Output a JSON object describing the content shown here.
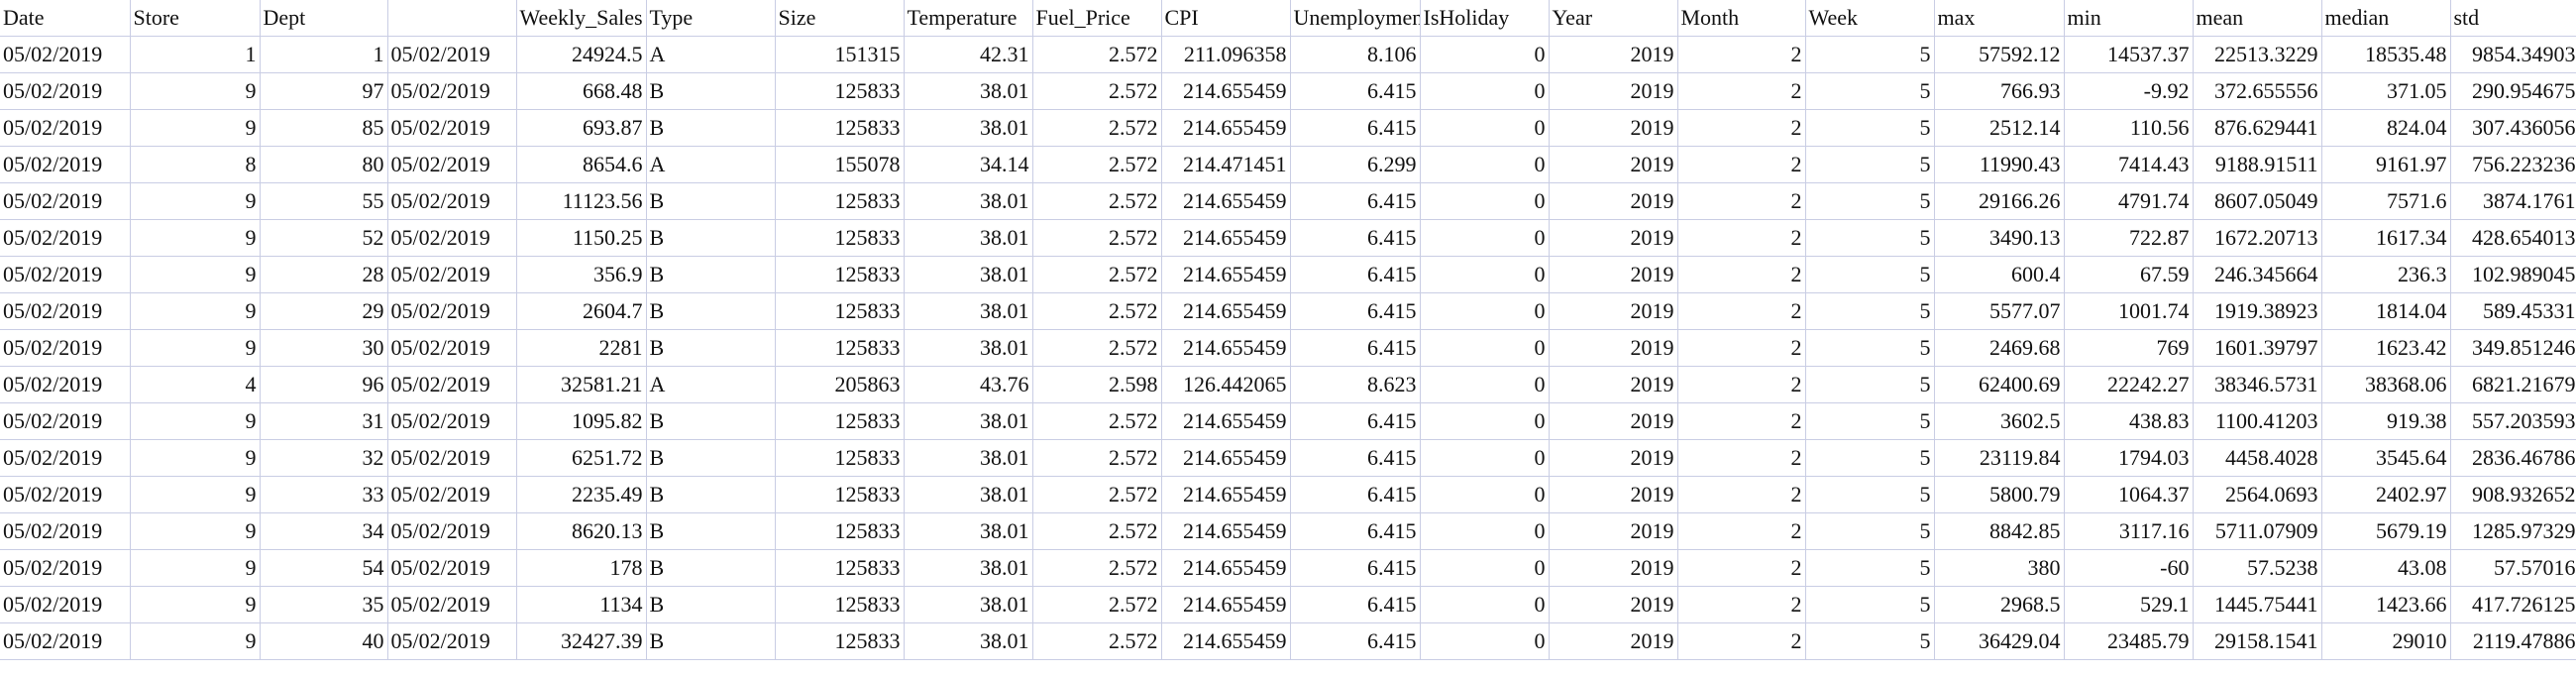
{
  "sheet": {
    "headers": [
      "Date",
      "Store",
      "Dept",
      "",
      "Weekly_Sales",
      "Type",
      "Size",
      "Temperature",
      "Fuel_Price",
      "CPI",
      "Unemployment",
      "IsHoliday",
      "Year",
      "Month",
      "Week",
      "max",
      "min",
      "mean",
      "median",
      "std"
    ],
    "rows": [
      [
        "05/02/2019",
        "1",
        "1",
        "05/02/2019",
        "24924.5",
        "A",
        "151315",
        "42.31",
        "2.572",
        "211.096358",
        "8.106",
        "0",
        "2019",
        "2",
        "5",
        "57592.12",
        "14537.37",
        "22513.3229",
        "18535.48",
        "9854.34903"
      ],
      [
        "05/02/2019",
        "9",
        "97",
        "05/02/2019",
        "668.48",
        "B",
        "125833",
        "38.01",
        "2.572",
        "214.655459",
        "6.415",
        "0",
        "2019",
        "2",
        "5",
        "766.93",
        "-9.92",
        "372.655556",
        "371.05",
        "290.954675"
      ],
      [
        "05/02/2019",
        "9",
        "85",
        "05/02/2019",
        "693.87",
        "B",
        "125833",
        "38.01",
        "2.572",
        "214.655459",
        "6.415",
        "0",
        "2019",
        "2",
        "5",
        "2512.14",
        "110.56",
        "876.629441",
        "824.04",
        "307.436056"
      ],
      [
        "05/02/2019",
        "8",
        "80",
        "05/02/2019",
        "8654.6",
        "A",
        "155078",
        "34.14",
        "2.572",
        "214.471451",
        "6.299",
        "0",
        "2019",
        "2",
        "5",
        "11990.43",
        "7414.43",
        "9188.91511",
        "9161.97",
        "756.223236"
      ],
      [
        "05/02/2019",
        "9",
        "55",
        "05/02/2019",
        "11123.56",
        "B",
        "125833",
        "38.01",
        "2.572",
        "214.655459",
        "6.415",
        "0",
        "2019",
        "2",
        "5",
        "29166.26",
        "4791.74",
        "8607.05049",
        "7571.6",
        "3874.1761"
      ],
      [
        "05/02/2019",
        "9",
        "52",
        "05/02/2019",
        "1150.25",
        "B",
        "125833",
        "38.01",
        "2.572",
        "214.655459",
        "6.415",
        "0",
        "2019",
        "2",
        "5",
        "3490.13",
        "722.87",
        "1672.20713",
        "1617.34",
        "428.654013"
      ],
      [
        "05/02/2019",
        "9",
        "28",
        "05/02/2019",
        "356.9",
        "B",
        "125833",
        "38.01",
        "2.572",
        "214.655459",
        "6.415",
        "0",
        "2019",
        "2",
        "5",
        "600.4",
        "67.59",
        "246.345664",
        "236.3",
        "102.989045"
      ],
      [
        "05/02/2019",
        "9",
        "29",
        "05/02/2019",
        "2604.7",
        "B",
        "125833",
        "38.01",
        "2.572",
        "214.655459",
        "6.415",
        "0",
        "2019",
        "2",
        "5",
        "5577.07",
        "1001.74",
        "1919.38923",
        "1814.04",
        "589.45331"
      ],
      [
        "05/02/2019",
        "9",
        "30",
        "05/02/2019",
        "2281",
        "B",
        "125833",
        "38.01",
        "2.572",
        "214.655459",
        "6.415",
        "0",
        "2019",
        "2",
        "5",
        "2469.68",
        "769",
        "1601.39797",
        "1623.42",
        "349.851246"
      ],
      [
        "05/02/2019",
        "4",
        "96",
        "05/02/2019",
        "32581.21",
        "A",
        "205863",
        "43.76",
        "2.598",
        "126.442065",
        "8.623",
        "0",
        "2019",
        "2",
        "5",
        "62400.69",
        "22242.27",
        "38346.5731",
        "38368.06",
        "6821.21679"
      ],
      [
        "05/02/2019",
        "9",
        "31",
        "05/02/2019",
        "1095.82",
        "B",
        "125833",
        "38.01",
        "2.572",
        "214.655459",
        "6.415",
        "0",
        "2019",
        "2",
        "5",
        "3602.5",
        "438.83",
        "1100.41203",
        "919.38",
        "557.203593"
      ],
      [
        "05/02/2019",
        "9",
        "32",
        "05/02/2019",
        "6251.72",
        "B",
        "125833",
        "38.01",
        "2.572",
        "214.655459",
        "6.415",
        "0",
        "2019",
        "2",
        "5",
        "23119.84",
        "1794.03",
        "4458.4028",
        "3545.64",
        "2836.46786"
      ],
      [
        "05/02/2019",
        "9",
        "33",
        "05/02/2019",
        "2235.49",
        "B",
        "125833",
        "38.01",
        "2.572",
        "214.655459",
        "6.415",
        "0",
        "2019",
        "2",
        "5",
        "5800.79",
        "1064.37",
        "2564.0693",
        "2402.97",
        "908.932652"
      ],
      [
        "05/02/2019",
        "9",
        "34",
        "05/02/2019",
        "8620.13",
        "B",
        "125833",
        "38.01",
        "2.572",
        "214.655459",
        "6.415",
        "0",
        "2019",
        "2",
        "5",
        "8842.85",
        "3117.16",
        "5711.07909",
        "5679.19",
        "1285.97329"
      ],
      [
        "05/02/2019",
        "9",
        "54",
        "05/02/2019",
        "178",
        "B",
        "125833",
        "38.01",
        "2.572",
        "214.655459",
        "6.415",
        "0",
        "2019",
        "2",
        "5",
        "380",
        "-60",
        "57.5238",
        "43.08",
        "57.57016"
      ],
      [
        "05/02/2019",
        "9",
        "35",
        "05/02/2019",
        "1134",
        "B",
        "125833",
        "38.01",
        "2.572",
        "214.655459",
        "6.415",
        "0",
        "2019",
        "2",
        "5",
        "2968.5",
        "529.1",
        "1445.75441",
        "1423.66",
        "417.726125"
      ],
      [
        "05/02/2019",
        "9",
        "40",
        "05/02/2019",
        "32427.39",
        "B",
        "125833",
        "38.01",
        "2.572",
        "214.655459",
        "6.415",
        "0",
        "2019",
        "2",
        "5",
        "36429.04",
        "23485.79",
        "29158.1541",
        "29010",
        "2119.47886"
      ]
    ]
  }
}
